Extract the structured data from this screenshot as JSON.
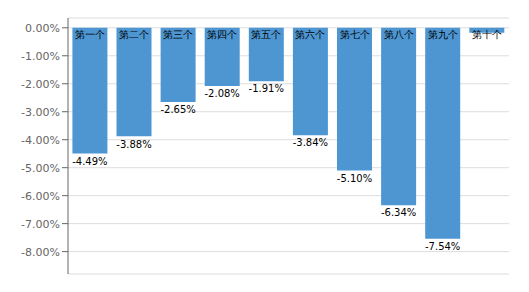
{
  "chart_data": {
    "type": "bar",
    "categories": [
      "第一个",
      "第二个",
      "第三个",
      "第四个",
      "第五个",
      "第六个",
      "第七个",
      "第八个",
      "第九个",
      "第十个"
    ],
    "values": [
      -4.49,
      -3.88,
      -2.65,
      -2.08,
      -1.91,
      -3.84,
      -5.1,
      -6.34,
      -7.54,
      -0.18
    ],
    "value_labels": [
      "-4.49%",
      "-3.88%",
      "-2.65%",
      "-2.08%",
      "-1.91%",
      "-3.84%",
      "-5.10%",
      "-6.34%",
      "-7.54%",
      null
    ],
    "data_labels": true,
    "color": "#4D96D2",
    "ylim": [
      -8.8,
      0.35
    ],
    "yticks": [
      {
        "value": 0.0,
        "label": "0.00%"
      },
      {
        "value": -1.0,
        "label": "-1.00%"
      },
      {
        "value": -2.0,
        "label": "-2.00%"
      },
      {
        "value": -3.0,
        "label": "-3.00%"
      },
      {
        "value": -4.0,
        "label": "-4.00%"
      },
      {
        "value": -5.0,
        "label": "-5.00%"
      },
      {
        "value": -6.0,
        "label": "-6.00%"
      },
      {
        "value": -7.0,
        "label": "-7.00%"
      },
      {
        "value": -8.0,
        "label": "-8.00%"
      }
    ],
    "grid": true
  }
}
